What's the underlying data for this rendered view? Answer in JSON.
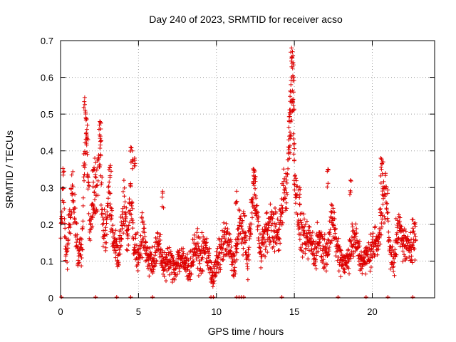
{
  "chart_data": {
    "type": "scatter",
    "title": "Day 240 of 2023, SRMTID for receiver acso",
    "xlabel": "GPS time / hours",
    "ylabel": "SRMTID / TECUs",
    "xlim": [
      0,
      24
    ],
    "ylim": [
      0,
      0.7
    ],
    "xticks": [
      0,
      5,
      10,
      15,
      20
    ],
    "yticks": [
      0,
      0.1,
      0.2,
      0.3,
      0.4,
      0.5,
      0.6,
      0.7
    ],
    "grid": true,
    "marker": "+",
    "marker_color": "#dd0000",
    "anchors": [
      [
        0.0,
        0.13
      ],
      [
        0.1,
        0.26
      ],
      [
        0.2,
        0.31
      ],
      [
        0.3,
        0.14
      ],
      [
        0.4,
        0.1
      ],
      [
        0.6,
        0.22
      ],
      [
        0.8,
        0.3
      ],
      [
        1.0,
        0.17
      ],
      [
        1.2,
        0.12
      ],
      [
        1.4,
        0.15
      ],
      [
        1.5,
        0.32
      ],
      [
        1.6,
        0.45
      ],
      [
        1.7,
        0.4
      ],
      [
        1.9,
        0.18
      ],
      [
        2.1,
        0.24
      ],
      [
        2.3,
        0.3
      ],
      [
        2.5,
        0.42
      ],
      [
        2.7,
        0.22
      ],
      [
        2.9,
        0.15
      ],
      [
        3.1,
        0.31
      ],
      [
        3.3,
        0.2
      ],
      [
        3.5,
        0.14
      ],
      [
        3.7,
        0.12
      ],
      [
        3.9,
        0.2
      ],
      [
        4.1,
        0.25
      ],
      [
        4.3,
        0.16
      ],
      [
        4.5,
        0.3
      ],
      [
        4.7,
        0.14
      ],
      [
        5.0,
        0.11
      ],
      [
        5.3,
        0.18
      ],
      [
        5.6,
        0.11
      ],
      [
        6.0,
        0.1
      ],
      [
        6.3,
        0.15
      ],
      [
        6.6,
        0.09
      ],
      [
        7.0,
        0.1
      ],
      [
        7.3,
        0.08
      ],
      [
        7.6,
        0.11
      ],
      [
        8.0,
        0.09
      ],
      [
        8.3,
        0.08
      ],
      [
        8.6,
        0.14
      ],
      [
        9.0,
        0.11
      ],
      [
        9.3,
        0.14
      ],
      [
        9.6,
        0.09
      ],
      [
        9.8,
        0.05
      ],
      [
        10.0,
        0.09
      ],
      [
        10.3,
        0.13
      ],
      [
        10.6,
        0.16
      ],
      [
        10.9,
        0.13
      ],
      [
        11.1,
        0.08
      ],
      [
        11.3,
        0.14
      ],
      [
        11.5,
        0.2
      ],
      [
        11.8,
        0.17
      ],
      [
        12.0,
        0.1
      ],
      [
        12.2,
        0.2
      ],
      [
        12.4,
        0.31
      ],
      [
        12.6,
        0.22
      ],
      [
        12.8,
        0.14
      ],
      [
        13.1,
        0.16
      ],
      [
        13.4,
        0.2
      ],
      [
        13.7,
        0.19
      ],
      [
        14.0,
        0.16
      ],
      [
        14.3,
        0.29
      ],
      [
        14.5,
        0.3
      ],
      [
        14.7,
        0.45
      ],
      [
        14.85,
        0.62
      ],
      [
        15.0,
        0.36
      ],
      [
        15.2,
        0.23
      ],
      [
        15.4,
        0.18
      ],
      [
        15.7,
        0.15
      ],
      [
        16.0,
        0.16
      ],
      [
        16.3,
        0.12
      ],
      [
        16.6,
        0.17
      ],
      [
        16.9,
        0.12
      ],
      [
        17.2,
        0.15
      ],
      [
        17.5,
        0.22
      ],
      [
        17.7,
        0.14
      ],
      [
        18.0,
        0.11
      ],
      [
        18.3,
        0.09
      ],
      [
        18.6,
        0.14
      ],
      [
        18.9,
        0.16
      ],
      [
        19.2,
        0.11
      ],
      [
        19.5,
        0.1
      ],
      [
        19.8,
        0.12
      ],
      [
        20.1,
        0.14
      ],
      [
        20.4,
        0.17
      ],
      [
        20.7,
        0.26
      ],
      [
        20.9,
        0.3
      ],
      [
        21.1,
        0.13
      ],
      [
        21.4,
        0.11
      ],
      [
        21.7,
        0.19
      ],
      [
        22.0,
        0.15
      ],
      [
        22.3,
        0.13
      ],
      [
        22.6,
        0.17
      ],
      [
        22.8,
        0.16
      ]
    ],
    "spikes": [
      [
        1.55,
        0.545
      ],
      [
        1.62,
        0.49
      ],
      [
        1.72,
        0.47
      ],
      [
        2.52,
        0.48
      ],
      [
        2.55,
        0.44
      ],
      [
        2.1,
        0.35
      ],
      [
        2.2,
        0.38
      ],
      [
        3.2,
        0.36
      ],
      [
        4.5,
        0.41
      ],
      [
        4.6,
        0.4
      ],
      [
        4.75,
        0.38
      ],
      [
        6.55,
        0.29
      ],
      [
        11.3,
        0.29
      ],
      [
        12.4,
        0.35
      ],
      [
        12.5,
        0.33
      ],
      [
        14.82,
        0.68
      ],
      [
        14.88,
        0.67
      ],
      [
        14.92,
        0.64
      ],
      [
        14.78,
        0.58
      ],
      [
        14.95,
        0.56
      ],
      [
        14.72,
        0.5
      ],
      [
        14.68,
        0.44
      ],
      [
        15.0,
        0.42
      ],
      [
        17.15,
        0.35
      ],
      [
        18.6,
        0.32
      ],
      [
        20.55,
        0.38
      ],
      [
        20.65,
        0.37
      ],
      [
        15.35,
        0.3
      ]
    ],
    "baseline_points": [
      [
        0.05,
        0.0
      ],
      [
        2.25,
        0.0
      ],
      [
        3.6,
        0.0
      ],
      [
        4.5,
        0.0
      ],
      [
        5.9,
        0.0
      ],
      [
        9.65,
        0.0
      ],
      [
        9.8,
        0.0
      ],
      [
        11.3,
        0.0
      ],
      [
        11.45,
        0.0
      ],
      [
        11.6,
        0.0
      ],
      [
        11.75,
        0.0
      ],
      [
        14.2,
        0.0
      ],
      [
        17.8,
        0.0
      ],
      [
        19.6,
        0.0
      ],
      [
        21.0,
        0.0
      ],
      [
        22.6,
        0.0
      ]
    ]
  }
}
